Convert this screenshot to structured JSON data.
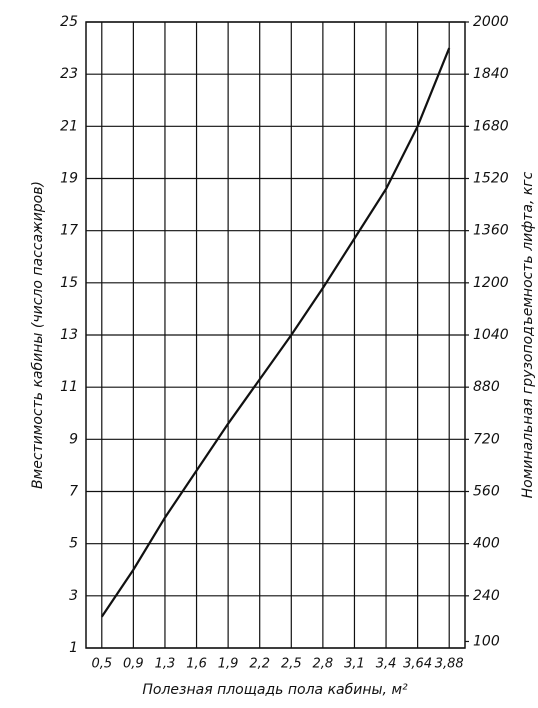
{
  "chart_data": {
    "type": "line",
    "x_label": "Полезная площадь пола кабины, м²",
    "y_label": "Вместимость кабины (число пассажиров)",
    "y2_label": "Номинальная грузоподъемность лифта, кгс",
    "categories": [
      {
        "value": 0.5,
        "label": "0,5"
      },
      {
        "value": 0.9,
        "label": "0,9"
      },
      {
        "value": 1.3,
        "label": "1,3"
      },
      {
        "value": 1.6,
        "label": "1,6"
      },
      {
        "value": 1.9,
        "label": "1,9"
      },
      {
        "value": 2.2,
        "label": "2,2"
      },
      {
        "value": 2.5,
        "label": "2,5"
      },
      {
        "value": 2.8,
        "label": "2,8"
      },
      {
        "value": 3.1,
        "label": "3,1"
      },
      {
        "value": 3.4,
        "label": "3,4"
      },
      {
        "value": 3.64,
        "label": "3,64"
      },
      {
        "value": 3.88,
        "label": "3,88"
      }
    ],
    "series": [
      {
        "color": "#111111",
        "values": [
          2.2,
          4.0,
          6.0,
          7.8,
          9.6,
          11.3,
          13.0,
          14.8,
          16.7,
          18.6,
          21.0,
          24.0
        ]
      }
    ],
    "ylim": [
      1,
      25
    ],
    "yticks": [
      1,
      3,
      5,
      7,
      9,
      11,
      13,
      15,
      17,
      19,
      21,
      23,
      25
    ],
    "y2lim": [
      80,
      2000
    ],
    "y2ticks": [
      100,
      240,
      400,
      560,
      720,
      880,
      1040,
      1200,
      1360,
      1520,
      1680,
      1840,
      2000
    ],
    "grid": true
  }
}
